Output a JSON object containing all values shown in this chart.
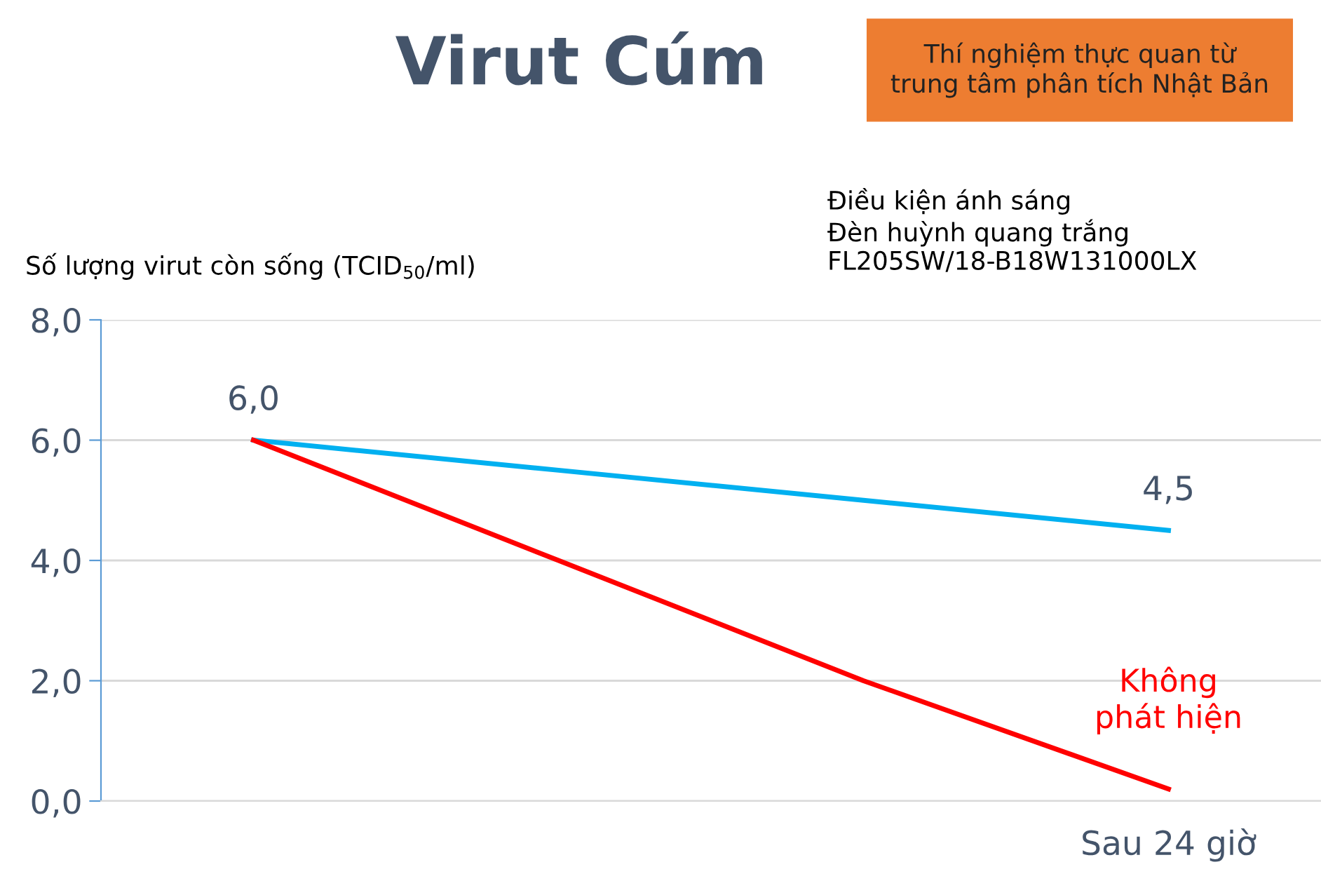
{
  "chart_data": {
    "type": "line",
    "title": "Virut Cúm",
    "ylabel": "Số lượng virut còn sống (TCID$_{50}$/ml)",
    "annotations": [
      "Thí nghiệm thực quan từ\ntrung tâm phân tích Nhật Bản",
      "Điều kiện ánh sáng\nĐèn huỳnh quang trắng\nFL205SW/18-B18W131000LX"
    ],
    "categories": [
      null,
      null,
      null,
      "Sau 24 giờ"
    ],
    "series": [
      {
        "color": "#00b0f0",
        "values": [
          6.0,
          5.5,
          5.0,
          4.5
        ],
        "value_labels": [
          "6,0",
          null,
          null,
          "4,5"
        ]
      },
      {
        "color": "#ff0000",
        "values": [
          6.0,
          4.0,
          2.0,
          0.2
        ],
        "value_labels": [
          null,
          null,
          null,
          "Không\nphát hiện"
        ]
      }
    ],
    "ylim": [
      0,
      8
    ],
    "yticks": [
      {
        "value": 0,
        "label": "0,0"
      },
      {
        "value": 2,
        "label": "2,0"
      },
      {
        "value": 4,
        "label": "4,0"
      },
      {
        "value": 6,
        "label": "6,0"
      },
      {
        "value": 8,
        "label": "8,0"
      }
    ],
    "grid": "y",
    "marker": "none",
    "line_style": "solid"
  }
}
